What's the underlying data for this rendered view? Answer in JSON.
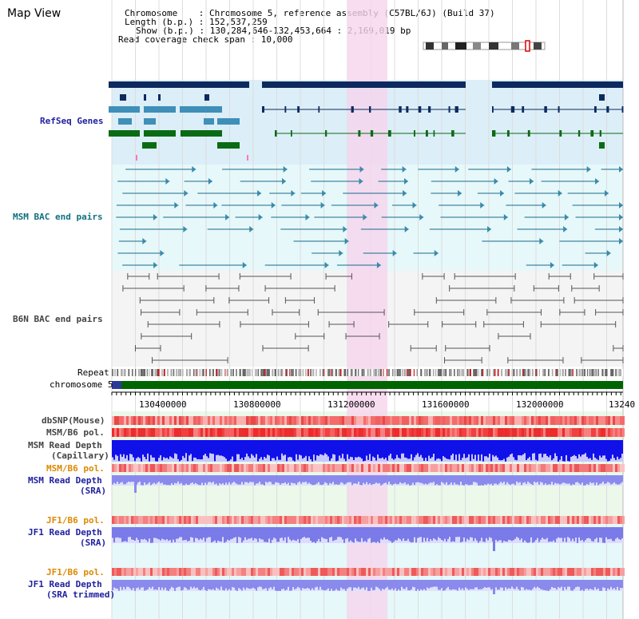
{
  "app": {
    "title": "Map View"
  },
  "info": {
    "chromosome_line": "Chromosome    : Chromosome 5, reference assembly (C57BL/6J) (Build 37)",
    "length_line": "Length (b.p.) : 152,537,259",
    "show_line": "Show (b.p.) : 130,284,646-132,453,664 : 2,169,019 bp",
    "span_line": "Read coverage check span : 10,000"
  },
  "tracks": {
    "refseq": "RefSeq Genes",
    "msm_bac": "MSM BAC end pairs",
    "b6n_bac": "B6N BAC end pairs",
    "repeat": "Repeat",
    "chromosome": "chromosome 5",
    "dbsnp": "dbSNP(Mouse)",
    "msm_b6_pol_1": "MSM/B6 pol.",
    "msm_read_depth_cap_1": "MSM Read Depth",
    "msm_read_depth_cap_2": "(Capillary)",
    "msm_b6_pol_2": "MSM/B6 pol.",
    "msm_read_depth_sra_1": "MSM Read Depth",
    "msm_read_depth_sra_2": "(SRA)",
    "jf1_b6_pol_1": "JF1/B6 pol.",
    "jf1_read_depth_sra_1": "JF1 Read Depth",
    "jf1_read_depth_sra_2": "(SRA)",
    "jf1_b6_pol_2": "JF1/B6 pol.",
    "jf1_read_depth_trim_1": "JF1 Read Depth",
    "jf1_read_depth_trim_2": "(SRA trimmed)"
  },
  "axis": {
    "ticks": [
      "130400000",
      "130800000",
      "131200000",
      "131600000",
      "132000000",
      "13240"
    ]
  },
  "colors": {
    "refseq_bg": "#dceef8",
    "bac_bg": "#e6f8fa",
    "highlight": "#f6d4ee",
    "gene_navy": "#0c2a5e",
    "gene_light": "#3f8fb8",
    "gene_green": "#0b6b14",
    "msm_bac_line": "#1a6a8a",
    "b6n_line": "#555555",
    "label_blue": "#2020a0",
    "label_teal": "#107080",
    "label_gray": "#444444",
    "label_orange": "#dd8800",
    "chrom_green": "#006400"
  }
}
